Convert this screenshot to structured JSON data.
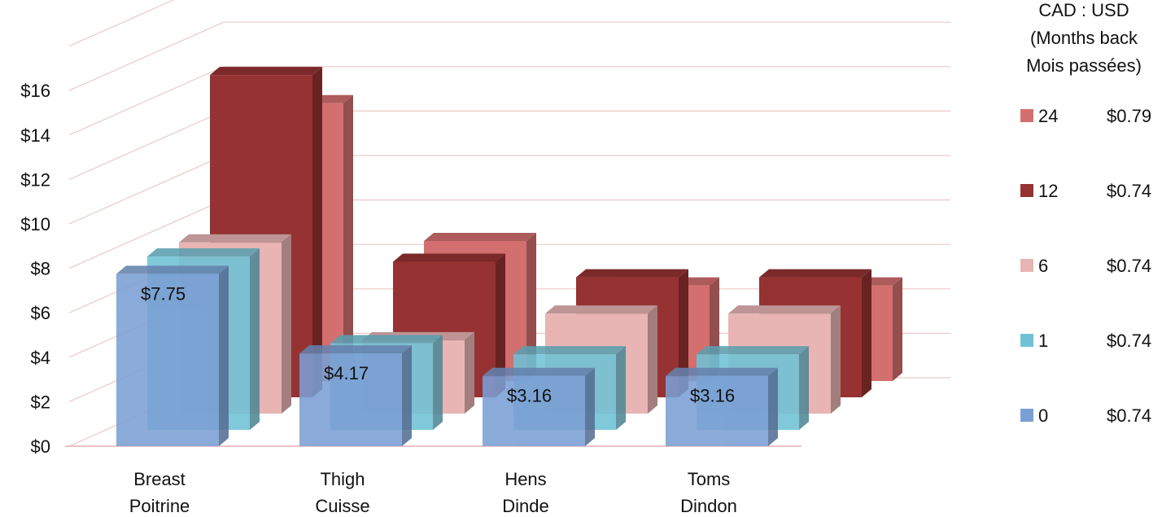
{
  "chart_data": {
    "type": "bar",
    "categories": [
      [
        "Breast",
        "Poitrine"
      ],
      [
        "Thigh",
        "Cuisse"
      ],
      [
        "Hens",
        "Dinde"
      ],
      [
        "Toms",
        "Dindon"
      ]
    ],
    "series": [
      {
        "name": "0",
        "rate": "$0.74",
        "color": "#7b9fd4",
        "values": [
          7.75,
          4.17,
          3.16,
          3.16
        ]
      },
      {
        "name": "1",
        "rate": "$0.74",
        "color": "#6fc2d6",
        "values": [
          7.8,
          3.9,
          3.4,
          3.4
        ]
      },
      {
        "name": "6",
        "rate": "$0.74",
        "color": "#e8b4b4",
        "values": [
          7.7,
          3.3,
          4.5,
          4.5
        ]
      },
      {
        "name": "12",
        "rate": "$0.74",
        "color": "#963232",
        "values": [
          14.5,
          6.1,
          5.4,
          5.4
        ]
      },
      {
        "name": "24",
        "rate": "$0.79",
        "color": "#d46f6f",
        "values": [
          12.5,
          6.3,
          4.3,
          4.3
        ]
      }
    ],
    "data_labels": [
      "$7.75",
      "$4.17",
      "$3.16",
      "$3.16"
    ],
    "y_ticks": [
      "$0",
      "$2",
      "$4",
      "$6",
      "$8",
      "$10",
      "$12",
      "$14",
      "$16"
    ],
    "ylim": [
      0,
      16
    ],
    "legend_title": [
      "CAD : USD",
      "(Months back",
      "Mois passées)"
    ],
    "legend_placement": "right",
    "grid": true,
    "view": "3d-clustered"
  }
}
